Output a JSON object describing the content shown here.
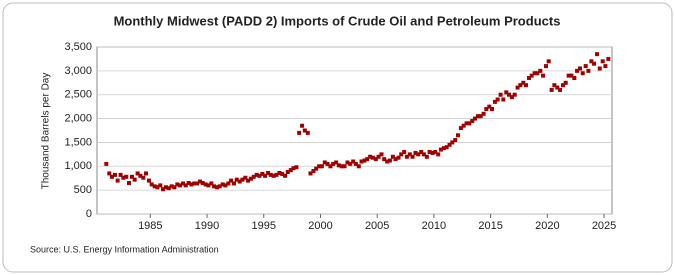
{
  "chart_data": {
    "type": "scatter",
    "title": "Monthly Midwest (PADD 2) Imports of Crude Oil and Petroleum Products",
    "y_label": "Thousand Barrels per Day",
    "source": "Source: U.S. Energy Information Administration",
    "color": "#a00000",
    "grid": true,
    "xlim": [
      1980.3,
      2025.7
    ],
    "ylim": [
      0,
      3500
    ],
    "xticks": [
      1985,
      1990,
      1995,
      2000,
      2005,
      2010,
      2015,
      2020,
      2025
    ],
    "yticks": [
      0,
      500,
      {
        "value": 1000,
        "label": "1,000"
      },
      {
        "value": 1500,
        "label": "1,500"
      },
      {
        "value": 2000,
        "label": "2,000"
      },
      {
        "value": 2500,
        "label": "2,500"
      },
      {
        "value": 3000,
        "label": "3,000"
      },
      {
        "value": 3500,
        "label": "3,500"
      }
    ],
    "x": [
      1981.12,
      1981.38,
      1981.62,
      1981.88,
      1982.12,
      1982.38,
      1982.62,
      1982.88,
      1983.12,
      1983.38,
      1983.62,
      1983.88,
      1984.12,
      1984.38,
      1984.62,
      1984.88,
      1985.12,
      1985.38,
      1985.62,
      1985.88,
      1986.12,
      1986.38,
      1986.62,
      1986.88,
      1987.12,
      1987.38,
      1987.62,
      1987.88,
      1988.12,
      1988.38,
      1988.62,
      1988.88,
      1989.12,
      1989.38,
      1989.62,
      1989.88,
      1990.12,
      1990.38,
      1990.62,
      1990.88,
      1991.12,
      1991.38,
      1991.62,
      1991.88,
      1992.12,
      1992.38,
      1992.62,
      1992.88,
      1993.12,
      1993.38,
      1993.62,
      1993.88,
      1994.12,
      1994.38,
      1994.62,
      1994.88,
      1995.12,
      1995.38,
      1995.62,
      1995.88,
      1996.12,
      1996.38,
      1996.62,
      1996.88,
      1997.12,
      1997.38,
      1997.62,
      1997.88,
      1998.12,
      1998.38,
      1998.62,
      1998.88,
      1999.12,
      1999.38,
      1999.62,
      1999.88,
      2000.12,
      2000.38,
      2000.62,
      2000.88,
      2001.12,
      2001.38,
      2001.62,
      2001.88,
      2002.12,
      2002.38,
      2002.62,
      2002.88,
      2003.12,
      2003.38,
      2003.62,
      2003.88,
      2004.12,
      2004.38,
      2004.62,
      2004.88,
      2005.12,
      2005.38,
      2005.62,
      2005.88,
      2006.12,
      2006.38,
      2006.62,
      2006.88,
      2007.12,
      2007.38,
      2007.62,
      2007.88,
      2008.12,
      2008.38,
      2008.62,
      2008.88,
      2009.12,
      2009.38,
      2009.62,
      2009.88,
      2010.12,
      2010.38,
      2010.62,
      2010.88,
      2011.12,
      2011.38,
      2011.62,
      2011.88,
      2012.12,
      2012.38,
      2012.62,
      2012.88,
      2013.12,
      2013.38,
      2013.62,
      2013.88,
      2014.12,
      2014.38,
      2014.62,
      2014.88,
      2015.12,
      2015.38,
      2015.62,
      2015.88,
      2016.12,
      2016.38,
      2016.62,
      2016.88,
      2017.12,
      2017.38,
      2017.62,
      2017.88,
      2018.12,
      2018.38,
      2018.62,
      2018.88,
      2019.12,
      2019.38,
      2019.62,
      2019.88,
      2020.12,
      2020.38,
      2020.62,
      2020.88,
      2021.12,
      2021.38,
      2021.62,
      2021.88,
      2022.12,
      2022.38,
      2022.62,
      2022.88,
      2023.12,
      2023.38,
      2023.62,
      2023.88,
      2024.12,
      2024.38,
      2024.62,
      2024.88,
      2025.12,
      2025.38
    ],
    "values": [
      1050,
      850,
      780,
      820,
      700,
      820,
      760,
      780,
      650,
      780,
      720,
      850,
      800,
      760,
      850,
      700,
      620,
      580,
      560,
      600,
      520,
      560,
      540,
      580,
      560,
      620,
      600,
      640,
      600,
      650,
      620,
      640,
      640,
      680,
      650,
      620,
      600,
      640,
      580,
      560,
      580,
      620,
      600,
      640,
      700,
      640,
      720,
      680,
      720,
      760,
      700,
      740,
      780,
      820,
      800,
      840,
      800,
      860,
      820,
      800,
      820,
      860,
      840,
      800,
      880,
      920,
      960,
      980,
      1700,
      1850,
      1750,
      1700,
      850,
      900,
      950,
      1000,
      1000,
      1080,
      1050,
      1000,
      1050,
      1080,
      1020,
      1000,
      1000,
      1080,
      1050,
      1100,
      1050,
      1000,
      1100,
      1120,
      1150,
      1200,
      1180,
      1150,
      1200,
      1250,
      1150,
      1100,
      1120,
      1200,
      1150,
      1180,
      1250,
      1300,
      1200,
      1250,
      1200,
      1280,
      1250,
      1300,
      1250,
      1200,
      1300,
      1280,
      1300,
      1250,
      1350,
      1380,
      1400,
      1450,
      1500,
      1550,
      1650,
      1800,
      1850,
      1900,
      1900,
      1950,
      2000,
      2050,
      2050,
      2100,
      2200,
      2250,
      2200,
      2350,
      2400,
      2500,
      2400,
      2550,
      2500,
      2450,
      2500,
      2650,
      2700,
      2750,
      2700,
      2850,
      2900,
      2950,
      2950,
      3000,
      2900,
      3100,
      3200,
      2600,
      2700,
      2650,
      2600,
      2700,
      2750,
      2900,
      2900,
      2850,
      3000,
      3050,
      2950,
      3100,
      3000,
      3200,
      3150,
      3350,
      3050,
      3200,
      3100,
      3250
    ]
  }
}
